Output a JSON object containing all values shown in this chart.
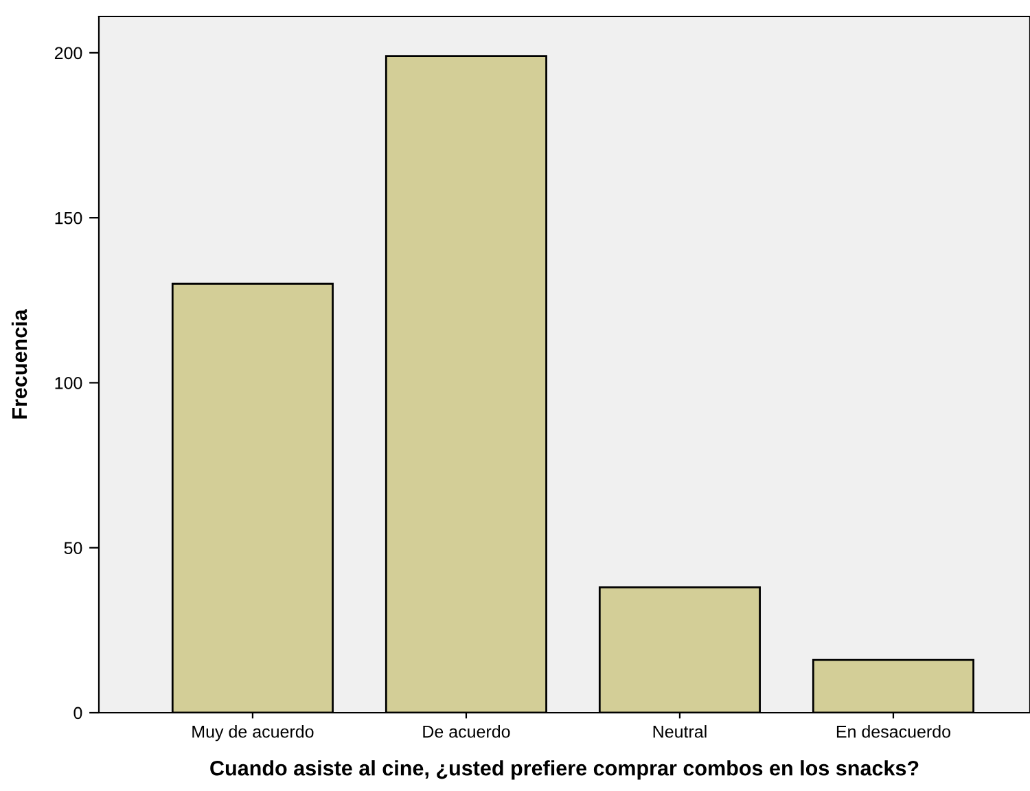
{
  "chart_data": {
    "type": "bar",
    "xlabel": "Cuando asiste al cine, ¿usted prefiere comprar combos en los snacks?",
    "ylabel": "Frecuencia",
    "categories": [
      "Muy de acuerdo",
      "De acuerdo",
      "Neutral",
      "En desacuerdo"
    ],
    "values": [
      130,
      199,
      38,
      16
    ],
    "color": "#d3ce97",
    "ylim": [
      0,
      211
    ],
    "yticks": [
      0,
      50,
      100,
      150,
      200
    ],
    "grid": false
  }
}
